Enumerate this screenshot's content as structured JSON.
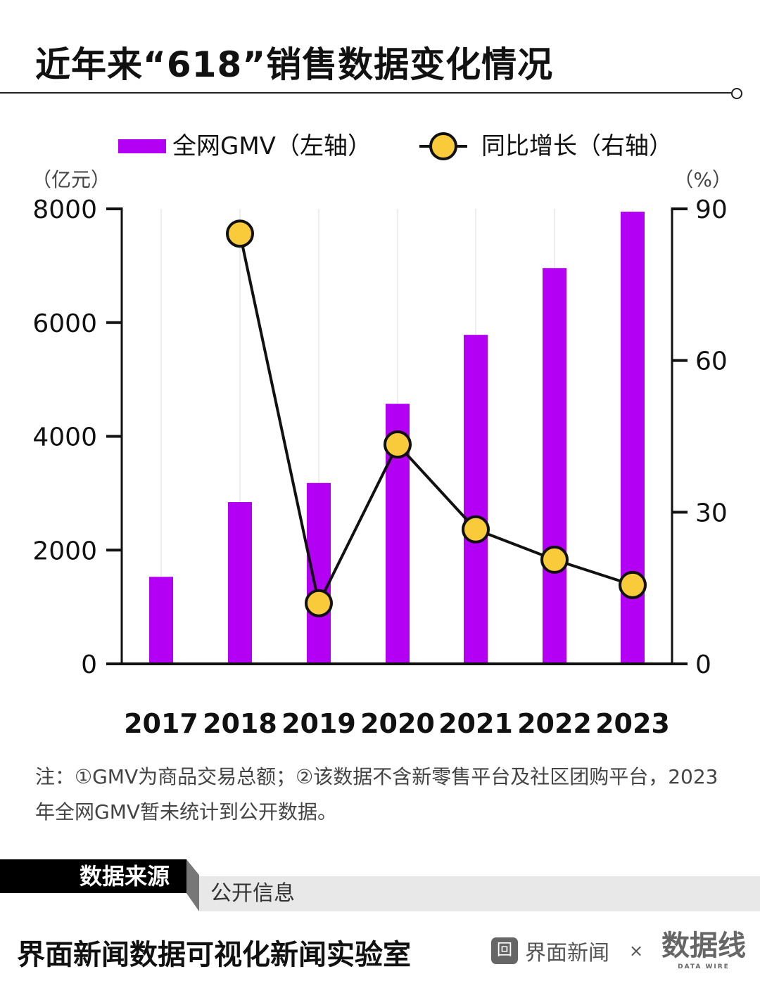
{
  "title": "近年来“618”销售数据变化情况",
  "chart_data": {
    "type": "bar+line",
    "title": "近年来“618”销售数据变化情况",
    "categories": [
      "2017",
      "2018",
      "2019",
      "2020",
      "2021",
      "2022",
      "2023"
    ],
    "series": [
      {
        "name": "全网GMV（左轴）",
        "type": "bar",
        "axis": "left",
        "color": "#b300f5",
        "values": [
          1530,
          2844,
          3180,
          4573,
          5785,
          6959,
          7950
        ]
      },
      {
        "name": "同比增长（右轴）",
        "type": "line",
        "axis": "right",
        "color": "#111111",
        "marker_color": "#f9cb3a",
        "values": [
          null,
          85.1,
          12.0,
          43.4,
          26.6,
          20.6,
          15.6
        ]
      }
    ],
    "left_axis": {
      "unit": "（亿元）",
      "ylim": [
        0,
        8000
      ],
      "ticks": [
        "0",
        "2000",
        "4000",
        "6000",
        "8000"
      ]
    },
    "right_axis": {
      "unit": "（%）",
      "ylim": [
        0,
        90
      ],
      "ticks": [
        "0",
        "30",
        "60",
        "90"
      ]
    },
    "grid": "vertical",
    "legend": "top"
  },
  "note": "注：①GMV为商品交易总额；②该数据不含新零售平台及社区团购平台，2023年全网GMV暂未统计到公开数据。",
  "source": {
    "label": "数据来源",
    "value": "公开信息"
  },
  "footer": {
    "org": "界面新闻数据可视化新闻实验室",
    "brand": "界面新闻",
    "times": "×",
    "partner": "数据线",
    "partner_sub": "DATA WIRE"
  }
}
